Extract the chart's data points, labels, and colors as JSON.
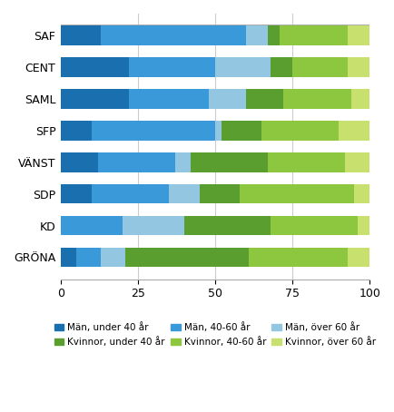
{
  "parties": [
    "SAF",
    "CENT",
    "SAML",
    "SFP",
    "VÄNST",
    "SDP",
    "KD",
    "GRÖNA"
  ],
  "segments": [
    {
      "label": "Män, under 40 år",
      "color": "#1a6faf",
      "values": [
        13,
        22,
        22,
        10,
        12,
        10,
        0,
        5
      ]
    },
    {
      "label": "Män, 40-60 år",
      "color": "#3a9ad9",
      "values": [
        47,
        28,
        26,
        40,
        25,
        25,
        20,
        8
      ]
    },
    {
      "label": "Män, över 60 år",
      "color": "#93c6e0",
      "values": [
        7,
        18,
        12,
        2,
        5,
        10,
        20,
        8
      ]
    },
    {
      "label": "Kvinnor, under 40 år",
      "color": "#5a9e2f",
      "values": [
        4,
        7,
        12,
        13,
        25,
        13,
        28,
        40
      ]
    },
    {
      "label": "Kvinnor, 40-60 år",
      "color": "#8dc63f",
      "values": [
        22,
        18,
        22,
        25,
        25,
        37,
        28,
        32
      ]
    },
    {
      "label": "Kvinnor, över 60 år",
      "color": "#c8e06e",
      "values": [
        7,
        7,
        6,
        10,
        8,
        5,
        4,
        7
      ]
    }
  ],
  "xlim": [
    0,
    100
  ],
  "xticks": [
    0,
    25,
    50,
    75,
    100
  ],
  "background_color": "#ffffff",
  "bar_height": 0.62,
  "grid_color": "#cccccc",
  "legend_fontsize": 7.5,
  "axis_fontsize": 9,
  "label_fontsize": 9,
  "figsize": [
    4.35,
    4.54
  ],
  "dpi": 100
}
